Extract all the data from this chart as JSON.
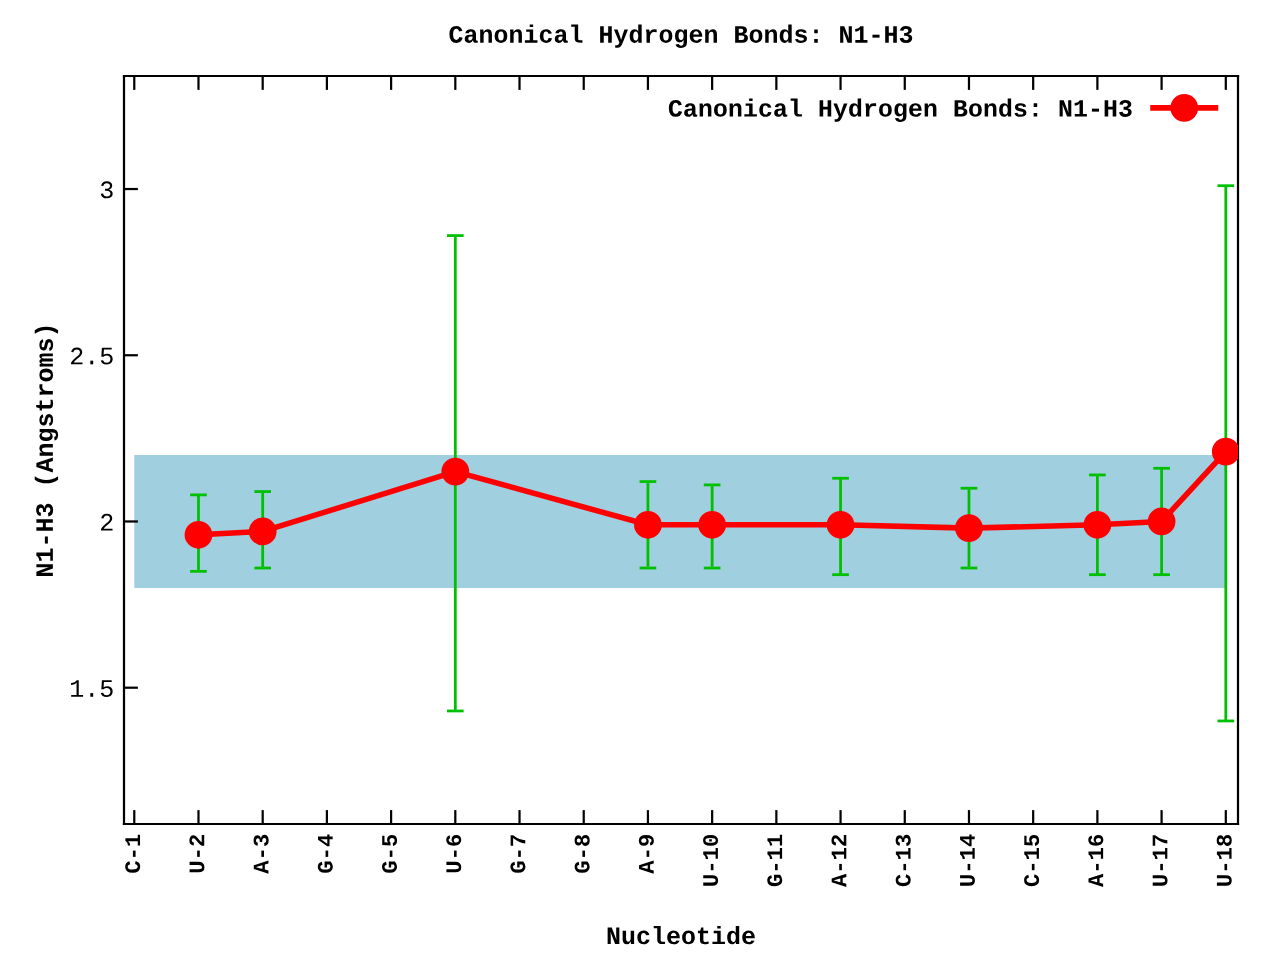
{
  "chart_data": {
    "type": "line",
    "title": "Canonical Hydrogen Bonds: N1-H3",
    "xlabel": "Nucleotide",
    "ylabel": "N1-H3 (Angstroms)",
    "categories": [
      "C-1",
      "U-2",
      "A-3",
      "G-4",
      "G-5",
      "U-6",
      "G-7",
      "G-8",
      "A-9",
      "U-10",
      "G-11",
      "A-12",
      "C-13",
      "U-14",
      "C-15",
      "A-16",
      "U-17",
      "U-18"
    ],
    "series": [
      {
        "name": "Canonical Hydrogen Bonds: N1-H3",
        "color": "#ff0000",
        "values": [
          null,
          1.96,
          1.97,
          null,
          null,
          2.15,
          null,
          null,
          1.99,
          1.99,
          null,
          1.99,
          null,
          1.98,
          null,
          1.99,
          2.0,
          2.21
        ],
        "errors": [
          null,
          [
            1.85,
            2.08
          ],
          [
            1.86,
            2.09
          ],
          null,
          null,
          [
            1.43,
            2.86
          ],
          null,
          null,
          [
            1.86,
            2.12
          ],
          [
            1.86,
            2.11
          ],
          null,
          [
            1.84,
            2.13
          ],
          null,
          [
            1.86,
            2.1
          ],
          null,
          [
            1.84,
            2.14
          ],
          [
            1.84,
            2.16
          ],
          [
            1.4,
            3.01
          ]
        ]
      }
    ],
    "ylim": [
      1.09,
      3.34
    ],
    "yticks": [
      1.5,
      2,
      2.5,
      3
    ],
    "bands": [
      {
        "axis": "y",
        "from": 1.8,
        "to": 2.2,
        "color": "#a0cfdf"
      }
    ],
    "marker": "circle",
    "line_style": "solid",
    "legend": "top right",
    "grid": false
  }
}
